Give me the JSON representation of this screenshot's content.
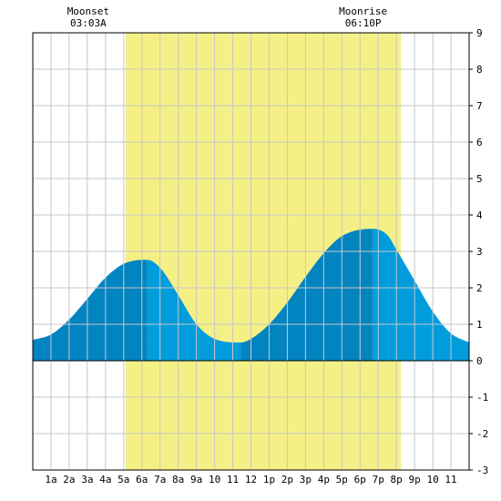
{
  "chart_data": {
    "type": "area",
    "title": "",
    "xlabel": "",
    "ylabel": "",
    "x_range_hours": [
      0,
      24
    ],
    "ylim": [
      -3,
      9
    ],
    "y_ticks": [
      -3,
      -2,
      -1,
      0,
      1,
      2,
      3,
      4,
      5,
      6,
      7,
      8,
      9
    ],
    "x_tick_labels": [
      "1a",
      "2a",
      "3a",
      "4a",
      "5a",
      "6a",
      "7a",
      "8a",
      "9a",
      "10",
      "11",
      "12",
      "1p",
      "2p",
      "3p",
      "4p",
      "5p",
      "6p",
      "7p",
      "8p",
      "9p",
      "10",
      "11"
    ],
    "daylight_hours": [
      5.1,
      20.25
    ],
    "annotations": [
      {
        "label": "Moonset",
        "time": "03:03A",
        "hour": 3.05
      },
      {
        "label": "Moonrise",
        "time": "06:10P",
        "hour": 18.17
      }
    ],
    "tide_series": {
      "x": [
        0,
        1,
        2,
        3,
        4,
        5,
        6.3,
        7,
        8,
        9,
        10,
        11.45,
        12,
        13,
        14,
        15,
        16,
        17,
        18.7,
        19.5,
        20,
        21,
        22,
        23,
        24
      ],
      "y": [
        0.57,
        0.72,
        1.13,
        1.7,
        2.28,
        2.66,
        2.77,
        2.55,
        1.8,
        1.0,
        0.6,
        0.5,
        0.6,
        1.0,
        1.6,
        2.3,
        2.95,
        3.42,
        3.62,
        3.45,
        3.05,
        2.2,
        1.35,
        0.75,
        0.5
      ]
    },
    "tide_shading_breaks_hours": [
      6.3,
      11.45,
      18.7
    ],
    "colors": {
      "daylight": "#f4f086",
      "tide_rising": "#0284c1",
      "tide_falling": "#009cdc",
      "grid": "#c8c8c8",
      "axis": "#000000"
    }
  }
}
